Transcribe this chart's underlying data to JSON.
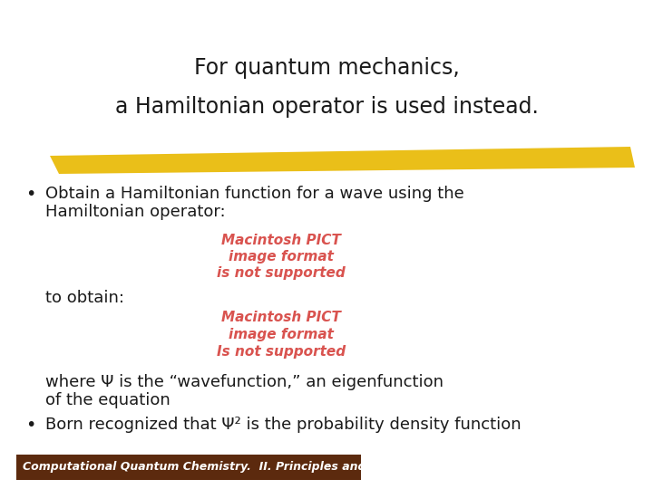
{
  "bg_color": "#ffffff",
  "title_line1": "For quantum mechanics,",
  "title_line2": "a Hamiltonian operator is used instead.",
  "title_fontsize": 17,
  "title_color": "#1a1a1a",
  "highlight_color": "#e8b800",
  "bullet1_line1": "Obtain a Hamiltonian function for a wave using the",
  "bullet1_line2": "Hamiltonian operator:",
  "pict_color": "#d9534f",
  "pict_text1": "Macintosh PICT",
  "pict_text2": "image format",
  "pict_text3": "is not supported",
  "pict2_text1": "Macintosh PICT",
  "pict2_text2": "image format",
  "pict2_text3": "Is not supported",
  "to_obtain_text": "to obtain:",
  "where_line1": "where Ψ is the “wavefunction,” an eigenfunction",
  "where_line2": "of the equation",
  "bullet2_line": "Born recognized that Ψ² is the probability density function",
  "body_fontsize": 13,
  "footer_text": "Computational Quantum Chemistry.  II. Principles and Methods.",
  "footer_bg": "#5c2a0e",
  "footer_color": "#ffffff",
  "footer_fontsize": 9
}
